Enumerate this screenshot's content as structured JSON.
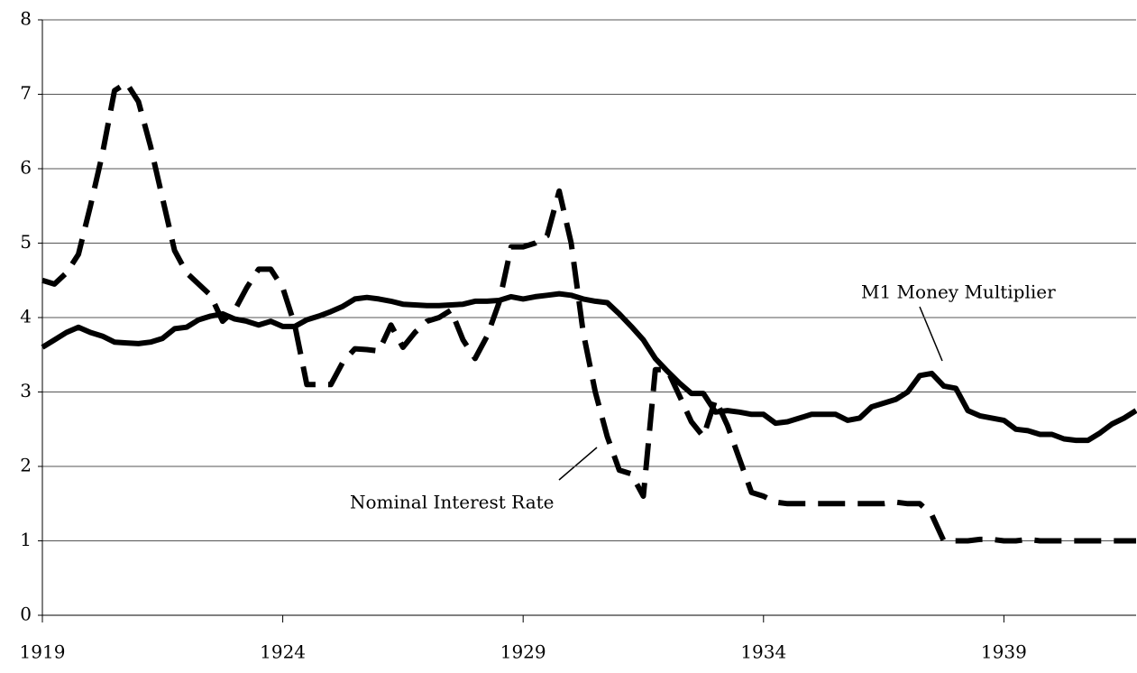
{
  "chart_data": {
    "type": "line",
    "x": [
      1919,
      1919.25,
      1919.5,
      1919.75,
      1920,
      1920.25,
      1920.5,
      1920.75,
      1921,
      1921.25,
      1921.5,
      1921.75,
      1922,
      1922.25,
      1922.5,
      1922.75,
      1923,
      1923.25,
      1923.5,
      1923.75,
      1924,
      1924.25,
      1924.5,
      1924.75,
      1925,
      1925.25,
      1925.5,
      1925.75,
      1926,
      1926.25,
      1926.5,
      1926.75,
      1927,
      1927.25,
      1927.5,
      1927.75,
      1928,
      1928.25,
      1928.5,
      1928.75,
      1929,
      1929.25,
      1929.5,
      1929.75,
      1930,
      1930.25,
      1930.5,
      1930.75,
      1931,
      1931.25,
      1931.5,
      1931.75,
      1932,
      1932.25,
      1932.5,
      1932.75,
      1933,
      1933.25,
      1933.5,
      1933.75,
      1934,
      1934.25,
      1934.5,
      1934.75,
      1935,
      1935.25,
      1935.5,
      1935.75,
      1936,
      1936.25,
      1936.5,
      1936.75,
      1937,
      1937.25,
      1937.5,
      1937.75,
      1938,
      1938.25,
      1938.5,
      1938.75,
      1939,
      1939.25,
      1939.5,
      1939.75,
      1940,
      1940.25,
      1940.5,
      1940.75,
      1941,
      1941.25,
      1941.5,
      1941.75
    ],
    "series": [
      {
        "name": "M1 Money Multiplier",
        "color": "#000000",
        "dash": false,
        "values": [
          3.6,
          3.7,
          3.8,
          3.87,
          3.8,
          3.75,
          3.67,
          3.66,
          3.65,
          3.67,
          3.72,
          3.85,
          3.87,
          3.97,
          4.02,
          4.05,
          3.98,
          3.95,
          3.9,
          3.95,
          3.88,
          3.88,
          3.97,
          4.02,
          4.08,
          4.15,
          4.25,
          4.27,
          4.25,
          4.22,
          4.18,
          4.17,
          4.16,
          4.16,
          4.17,
          4.18,
          4.22,
          4.22,
          4.23,
          4.28,
          4.25,
          4.28,
          4.3,
          4.32,
          4.3,
          4.25,
          4.22,
          4.2,
          4.05,
          3.88,
          3.7,
          3.45,
          3.28,
          3.12,
          2.98,
          2.98,
          2.73,
          2.75,
          2.73,
          2.7,
          2.7,
          2.58,
          2.6,
          2.65,
          2.7,
          2.7,
          2.7,
          2.62,
          2.65,
          2.8,
          2.85,
          2.9,
          3.0,
          3.22,
          3.25,
          3.08,
          3.05,
          2.75,
          2.68,
          2.65,
          2.62,
          2.5,
          2.48,
          2.43,
          2.43,
          2.37,
          2.35,
          2.35,
          2.45,
          2.57,
          2.65,
          2.75
        ]
      },
      {
        "name": "Nominal Interest Rate",
        "color": "#000000",
        "dash": true,
        "values": [
          4.5,
          4.45,
          4.6,
          4.85,
          5.5,
          6.2,
          7.05,
          7.15,
          6.9,
          6.3,
          5.6,
          4.9,
          4.6,
          4.45,
          4.3,
          3.95,
          4.1,
          4.4,
          4.65,
          4.65,
          4.4,
          3.9,
          3.1,
          3.1,
          3.1,
          3.4,
          3.58,
          3.57,
          3.55,
          3.9,
          3.6,
          3.8,
          3.95,
          4.0,
          4.1,
          3.7,
          3.45,
          3.75,
          4.2,
          4.95,
          4.95,
          5.0,
          5.1,
          5.7,
          5.0,
          3.8,
          3.0,
          2.4,
          1.95,
          1.9,
          1.6,
          3.3,
          3.3,
          2.95,
          2.6,
          2.4,
          2.9,
          2.55,
          2.1,
          1.65,
          1.6,
          1.52,
          1.5,
          1.5,
          1.5,
          1.5,
          1.5,
          1.5,
          1.5,
          1.5,
          1.5,
          1.52,
          1.5,
          1.5,
          1.35,
          1.0,
          1.0,
          1.0,
          1.02,
          1.02,
          1.0,
          1.0,
          1.02,
          1.0,
          1.0,
          1.0,
          1.0,
          1.0,
          1.0,
          1.0,
          1.0,
          1.0
        ]
      }
    ],
    "xlim": [
      1919,
      1941.75
    ],
    "xticks": [
      1919,
      1924,
      1929,
      1934,
      1939
    ],
    "ylim": [
      0,
      8
    ],
    "yticks": [
      0,
      1,
      2,
      3,
      4,
      5,
      6,
      7,
      8
    ],
    "grid": true
  }
}
